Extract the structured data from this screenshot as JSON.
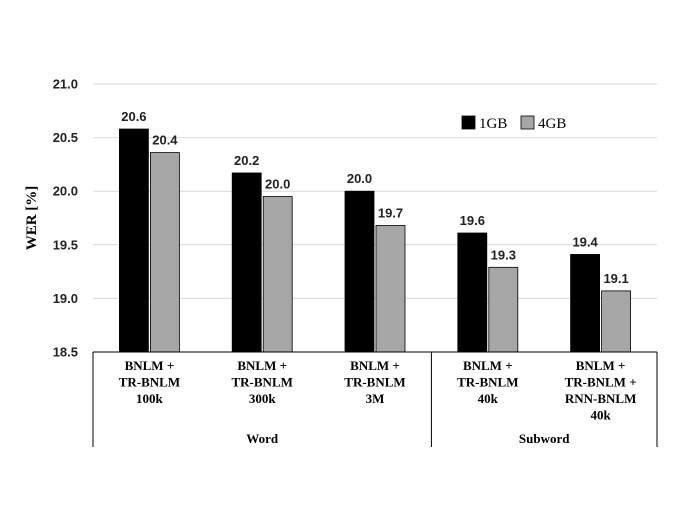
{
  "chart_data": {
    "type": "bar",
    "title": "",
    "xlabel": "",
    "ylabel": "WER [%]",
    "ylim": [
      18.5,
      21.0
    ],
    "yticks": [
      "18.5",
      "19.0",
      "19.5",
      "20.0",
      "20.5",
      "21.0"
    ],
    "grid": true,
    "legend_position": "top-right",
    "categories": [
      [
        "BNLM +",
        "TR-BNLM",
        "100k"
      ],
      [
        "BNLM +",
        "TR-BNLM",
        "300k"
      ],
      [
        "BNLM +",
        "TR-BNLM",
        "3M"
      ],
      [
        "BNLM +",
        "TR-BNLM",
        "40k"
      ],
      [
        "BNLM +",
        "TR-BNLM +",
        "RNN-BNLM",
        "40k"
      ]
    ],
    "groups": [
      {
        "label": "Word",
        "span": 3
      },
      {
        "label": "Subword",
        "span": 2
      }
    ],
    "series": [
      {
        "name": "1GB",
        "color": "#000000",
        "values": [
          20.58,
          20.17,
          20.0,
          19.61,
          19.41
        ],
        "labels": [
          "20.6",
          "20.2",
          "20.0",
          "19.6",
          "19.4"
        ]
      },
      {
        "name": "4GB",
        "color": "#a6a6a6",
        "values": [
          20.36,
          19.95,
          19.68,
          19.29,
          19.07
        ],
        "labels": [
          "20.4",
          "20.0",
          "19.7",
          "19.3",
          "19.1"
        ]
      }
    ]
  }
}
